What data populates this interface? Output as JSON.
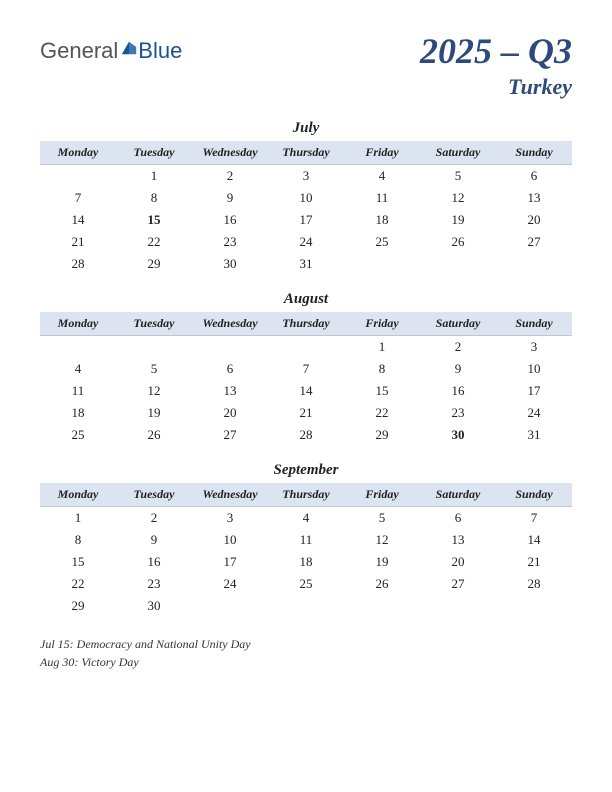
{
  "logo": {
    "part1": "General",
    "part2": "Blue"
  },
  "title": {
    "quarter": "2025 – Q3",
    "country": "Turkey"
  },
  "weekdays": [
    "Monday",
    "Tuesday",
    "Wednesday",
    "Thursday",
    "Friday",
    "Saturday",
    "Sunday"
  ],
  "header_bg": "#dbe4f0",
  "title_color": "#2c4a7a",
  "holiday_color": "#c02020",
  "months": [
    {
      "name": "July",
      "weeks": [
        [
          "",
          "1",
          "2",
          "3",
          "4",
          "5",
          "6"
        ],
        [
          "7",
          "8",
          "9",
          "10",
          "11",
          "12",
          "13"
        ],
        [
          "14",
          "15",
          "16",
          "17",
          "18",
          "19",
          "20"
        ],
        [
          "21",
          "22",
          "23",
          "24",
          "25",
          "26",
          "27"
        ],
        [
          "28",
          "29",
          "30",
          "31",
          "",
          "",
          ""
        ]
      ],
      "holidays": [
        "15"
      ]
    },
    {
      "name": "August",
      "weeks": [
        [
          "",
          "",
          "",
          "",
          "1",
          "2",
          "3"
        ],
        [
          "4",
          "5",
          "6",
          "7",
          "8",
          "9",
          "10"
        ],
        [
          "11",
          "12",
          "13",
          "14",
          "15",
          "16",
          "17"
        ],
        [
          "18",
          "19",
          "20",
          "21",
          "22",
          "23",
          "24"
        ],
        [
          "25",
          "26",
          "27",
          "28",
          "29",
          "30",
          "31"
        ]
      ],
      "holidays": [
        "30"
      ]
    },
    {
      "name": "September",
      "weeks": [
        [
          "1",
          "2",
          "3",
          "4",
          "5",
          "6",
          "7"
        ],
        [
          "8",
          "9",
          "10",
          "11",
          "12",
          "13",
          "14"
        ],
        [
          "15",
          "16",
          "17",
          "18",
          "19",
          "20",
          "21"
        ],
        [
          "22",
          "23",
          "24",
          "25",
          "26",
          "27",
          "28"
        ],
        [
          "29",
          "30",
          "",
          "",
          "",
          "",
          ""
        ]
      ],
      "holidays": []
    }
  ],
  "holiday_notes": [
    "Jul 15: Democracy and National Unity Day",
    "Aug 30: Victory Day"
  ]
}
